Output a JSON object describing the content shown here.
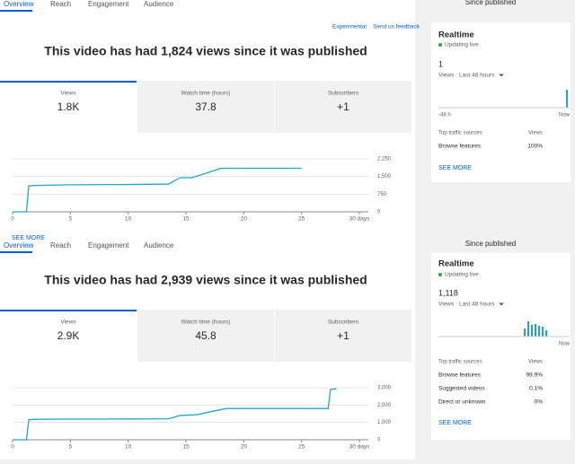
{
  "panels": [
    {
      "tabs": [
        "Overview",
        "Reach",
        "Engagement",
        "Audience"
      ],
      "period": "Since published",
      "links": [
        "Experimental",
        "Send us feedback"
      ],
      "heading": "This video has had 1,824 views since it was published",
      "metrics": [
        {
          "label": "Views",
          "value": "1.8K"
        },
        {
          "label": "Watch time (hours)",
          "value": "37.8"
        },
        {
          "label": "Subscribers",
          "value": "+1"
        }
      ],
      "chart": {
        "type": "line",
        "color": "#1ea7c9",
        "x": [
          0,
          1.2,
          1.4,
          2,
          5,
          10,
          13.5,
          14.5,
          15.5,
          16.5,
          18,
          25
        ],
        "values": [
          0,
          0,
          1100,
          1120,
          1150,
          1160,
          1180,
          1450,
          1450,
          1600,
          1850,
          1850
        ],
        "xlim": [
          0,
          30
        ],
        "xticks": [
          0,
          5,
          10,
          15,
          20,
          25,
          {
            "value": 30,
            "label": "30 days"
          }
        ],
        "ylim": [
          0,
          2250
        ],
        "yticks": [
          0,
          750,
          {
            "value": 1500,
            "label": "1,500"
          },
          {
            "value": 2250,
            "label": "2,250"
          }
        ]
      },
      "see_more": "SEE MORE",
      "realtime": {
        "title": "Realtime",
        "status": "Updating live",
        "count": "1",
        "subtitle": "Views · Last 48 hours",
        "axis": [
          "-48 h",
          "Now"
        ],
        "sources_header": [
          "Top traffic sources",
          "Views"
        ],
        "sources": [
          [
            "Browse features",
            "100%"
          ]
        ],
        "see_more": "SEE MORE"
      }
    },
    {
      "tabs": [
        "Overview",
        "Reach",
        "Engagement",
        "Audience"
      ],
      "period": "Since published",
      "heading": "This video has had 2,939 views since it was published",
      "metrics": [
        {
          "label": "Views",
          "value": "2.9K"
        },
        {
          "label": "Watch time (hours)",
          "value": "45.8"
        },
        {
          "label": "Subscribers",
          "value": "+1"
        }
      ],
      "chart": {
        "type": "line",
        "color": "#1ea7c9",
        "x": [
          0,
          1.2,
          1.4,
          2,
          5,
          10,
          13.5,
          14.5,
          16,
          17,
          18.5,
          27.3,
          27.5,
          28
        ],
        "values": [
          0,
          0,
          1150,
          1180,
          1190,
          1200,
          1210,
          1400,
          1450,
          1600,
          1800,
          1800,
          2900,
          2939
        ],
        "xlim": [
          0,
          30
        ],
        "xticks": [
          0,
          5,
          10,
          15,
          20,
          25,
          {
            "value": 30,
            "label": "30 days"
          }
        ],
        "ylim": [
          0,
          3000
        ],
        "yticks": [
          0,
          {
            "value": 1000,
            "label": "1,000"
          },
          {
            "value": 2000,
            "label": "2,000"
          },
          {
            "value": 3000,
            "label": "3,000"
          }
        ]
      },
      "realtime": {
        "title": "Realtime",
        "status": "Updating live",
        "count": "1,118",
        "subtitle": "Views · Last 48 hours",
        "axis": [
          "Now"
        ],
        "sources_header": [
          "Top traffic sources",
          "Views"
        ],
        "sources": [
          [
            "Browse features",
            "99.9%"
          ],
          [
            "Suggested videos",
            "0.1%"
          ],
          [
            "Direct or unknown",
            "0%"
          ]
        ],
        "see_more": "SEE MORE"
      }
    }
  ]
}
